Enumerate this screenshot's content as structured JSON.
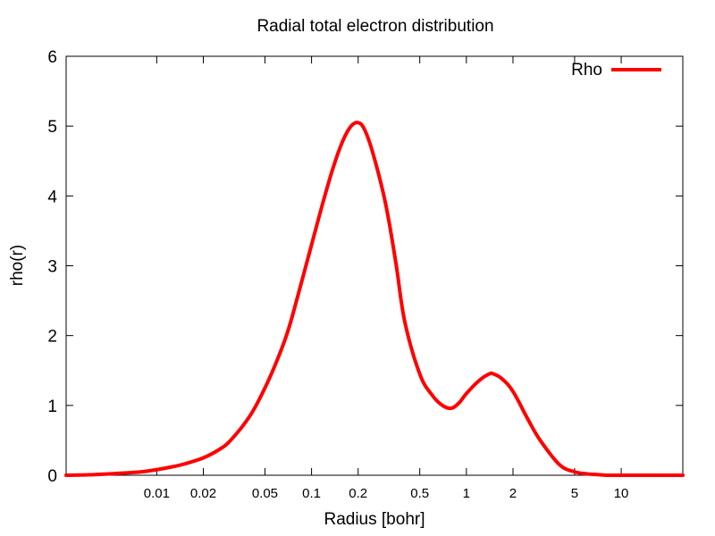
{
  "chart_data": {
    "type": "line",
    "title": "Radial total electron distribution",
    "xlabel": "Radius [bohr]",
    "ylabel": "rho(r)",
    "x_scale": "log",
    "xlim": [
      0.0026,
      25
    ],
    "ylim": [
      0,
      6
    ],
    "x_ticks": [
      {
        "value": 0.01,
        "label": "0.01"
      },
      {
        "value": 0.02,
        "label": "0.02"
      },
      {
        "value": 0.05,
        "label": "0.05"
      },
      {
        "value": 0.1,
        "label": "0.1"
      },
      {
        "value": 0.2,
        "label": "0.2"
      },
      {
        "value": 0.5,
        "label": "0.5"
      },
      {
        "value": 1,
        "label": "1"
      },
      {
        "value": 2,
        "label": "2"
      },
      {
        "value": 5,
        "label": "5"
      },
      {
        "value": 10,
        "label": "10"
      }
    ],
    "y_ticks": [
      {
        "value": 0,
        "label": "0"
      },
      {
        "value": 1,
        "label": "1"
      },
      {
        "value": 2,
        "label": "2"
      },
      {
        "value": 3,
        "label": "3"
      },
      {
        "value": 4,
        "label": "4"
      },
      {
        "value": 5,
        "label": "5"
      },
      {
        "value": 6,
        "label": "6"
      }
    ],
    "grid": false,
    "legend_position": "top-right",
    "series": [
      {
        "name": "Rho",
        "color": "#ff0000",
        "x": [
          0.0026,
          0.004,
          0.006,
          0.008,
          0.01,
          0.0125,
          0.015,
          0.02,
          0.025,
          0.03,
          0.04,
          0.05,
          0.06,
          0.07,
          0.08,
          0.1,
          0.12,
          0.14,
          0.16,
          0.18,
          0.2,
          0.22,
          0.25,
          0.3,
          0.35,
          0.4,
          0.5,
          0.6,
          0.7,
          0.8,
          0.9,
          1.0,
          1.2,
          1.4,
          1.5,
          1.7,
          2.0,
          2.5,
          3.0,
          4.0,
          5.0,
          6.0,
          7.0,
          8.0,
          10.0,
          15.0,
          25.0
        ],
        "y": [
          0.0,
          0.01,
          0.03,
          0.05,
          0.08,
          0.12,
          0.16,
          0.25,
          0.36,
          0.5,
          0.85,
          1.25,
          1.65,
          2.05,
          2.5,
          3.3,
          3.95,
          4.45,
          4.8,
          5.0,
          5.05,
          4.95,
          4.6,
          3.9,
          3.05,
          2.2,
          1.45,
          1.15,
          1.0,
          0.96,
          1.04,
          1.17,
          1.35,
          1.45,
          1.45,
          1.38,
          1.2,
          0.8,
          0.5,
          0.15,
          0.05,
          0.02,
          0.01,
          0.0,
          0.0,
          0.0,
          0.0
        ]
      }
    ]
  }
}
